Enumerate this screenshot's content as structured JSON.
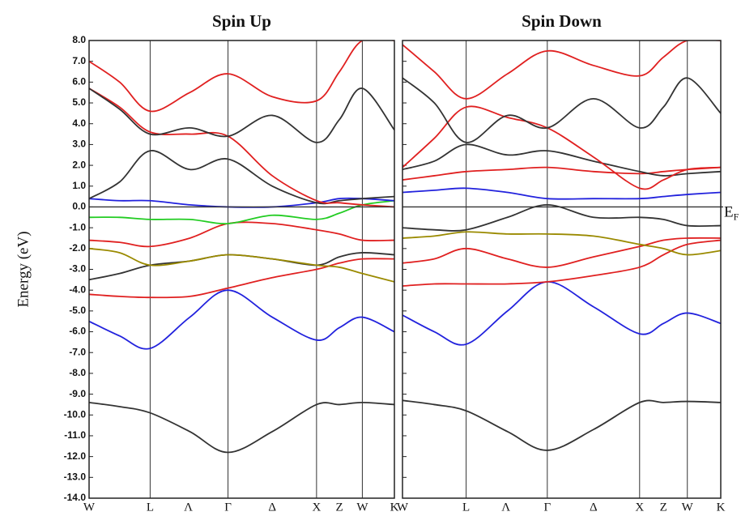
{
  "chart_data": [
    {
      "type": "line",
      "title": "Spin Up",
      "ylabel": "Energy (eV)",
      "x": [
        0,
        0.1,
        0.2,
        0.33,
        0.455,
        0.6,
        0.745,
        0.82,
        0.895,
        1.0
      ],
      "xlim": [
        0,
        1
      ],
      "xticks": [
        {
          "value": 0,
          "label": "W"
        },
        {
          "value": 0.2,
          "label": "L"
        },
        {
          "value": 0.325,
          "label": "Λ"
        },
        {
          "value": 0.455,
          "label": "Γ"
        },
        {
          "value": 0.6,
          "label": "Δ"
        },
        {
          "value": 0.745,
          "label": "X"
        },
        {
          "value": 0.82,
          "label": "Z"
        },
        {
          "value": 0.895,
          "label": "W"
        },
        {
          "value": 1.0,
          "label": "K"
        }
      ],
      "vlines": [
        0.2,
        0.455,
        0.745,
        0.895
      ],
      "fermi_level": 0,
      "ylim": [
        -14,
        8
      ],
      "yticks": [
        {
          "value": 8,
          "label": "8.0"
        },
        {
          "value": 7,
          "label": "7.0"
        },
        {
          "value": 6,
          "label": "6.0"
        },
        {
          "value": 5,
          "label": "5.0"
        },
        {
          "value": 4,
          "label": "4.0"
        },
        {
          "value": 3,
          "label": "3.0"
        },
        {
          "value": 2,
          "label": "2.0"
        },
        {
          "value": 1,
          "label": "1.0"
        },
        {
          "value": 0,
          "label": "0.0"
        },
        {
          "value": -1,
          "label": "-1.0"
        },
        {
          "value": -2,
          "label": "-2.0"
        },
        {
          "value": -3,
          "label": "-3.0"
        },
        {
          "value": -4,
          "label": "-4.0"
        },
        {
          "value": -5,
          "label": "-5.0"
        },
        {
          "value": -6,
          "label": "-6.0"
        },
        {
          "value": -7,
          "label": "-7.0"
        },
        {
          "value": -8,
          "label": "-8.0"
        },
        {
          "value": -9,
          "label": "-9.0"
        },
        {
          "value": -10,
          "label": "-10.0"
        },
        {
          "value": -11,
          "label": "-11.0"
        },
        {
          "value": -12,
          "label": "-12.0"
        },
        {
          "value": -13,
          "label": "-13.0"
        },
        {
          "value": -14,
          "label": "-14.0"
        }
      ],
      "series": [
        {
          "color": "#333333",
          "values": [
            -9.4,
            -9.6,
            -9.9,
            -10.8,
            -11.8,
            -10.8,
            -9.5,
            -9.5,
            -9.4,
            -9.5
          ]
        },
        {
          "color": "#2222dd",
          "values": [
            -5.5,
            -6.2,
            -6.8,
            -5.3,
            -4.0,
            -5.3,
            -6.4,
            -5.8,
            -5.3,
            -6.0
          ]
        },
        {
          "color": "#e02020",
          "values": [
            -4.2,
            -4.3,
            -4.35,
            -4.3,
            -3.9,
            -3.4,
            -3.0,
            -2.7,
            -2.5,
            -2.5
          ]
        },
        {
          "color": "#333333",
          "values": [
            -3.5,
            -3.2,
            -2.8,
            -2.6,
            -2.3,
            -2.5,
            -2.8,
            -2.4,
            -2.2,
            -2.3
          ]
        },
        {
          "color": "#9a8a00",
          "values": [
            -2.0,
            -2.2,
            -2.8,
            -2.6,
            -2.3,
            -2.5,
            -2.8,
            -2.9,
            -3.2,
            -3.6
          ]
        },
        {
          "color": "#e02020",
          "values": [
            -1.6,
            -1.7,
            -1.9,
            -1.5,
            -0.8,
            -0.8,
            -1.1,
            -1.3,
            -1.6,
            -1.6
          ]
        },
        {
          "color": "#22cc22",
          "values": [
            -0.5,
            -0.5,
            -0.6,
            -0.6,
            -0.8,
            -0.4,
            -0.6,
            -0.3,
            0.1,
            0.3
          ]
        },
        {
          "color": "#2222dd",
          "values": [
            0.4,
            0.3,
            0.3,
            0.1,
            0.0,
            0.0,
            0.2,
            0.4,
            0.4,
            0.3
          ]
        },
        {
          "color": "#333333",
          "values": [
            0.4,
            1.2,
            2.7,
            1.8,
            2.3,
            1.0,
            0.2,
            0.3,
            0.4,
            0.5
          ]
        },
        {
          "color": "#e02020",
          "values": [
            5.7,
            4.8,
            3.6,
            3.5,
            3.4,
            1.5,
            0.3,
            0.2,
            0.1,
            0.0
          ]
        },
        {
          "color": "#333333",
          "values": [
            5.7,
            4.7,
            3.5,
            3.8,
            3.4,
            4.4,
            3.1,
            4.2,
            5.7,
            3.7
          ]
        },
        {
          "color": "#e02020",
          "values": [
            7.0,
            6.0,
            4.6,
            5.5,
            6.4,
            5.3,
            5.1,
            6.5,
            8.0,
            8.0
          ]
        }
      ]
    },
    {
      "type": "line",
      "title": "Spin Down",
      "annotation": {
        "text": "E",
        "sub": "F"
      },
      "x": [
        0,
        0.1,
        0.2,
        0.33,
        0.455,
        0.6,
        0.745,
        0.82,
        0.895,
        1.0
      ],
      "xlim": [
        0,
        1
      ],
      "xticks": [
        {
          "value": 0,
          "label": "W"
        },
        {
          "value": 0.2,
          "label": "L"
        },
        {
          "value": 0.325,
          "label": "Λ"
        },
        {
          "value": 0.455,
          "label": "Γ"
        },
        {
          "value": 0.6,
          "label": "Δ"
        },
        {
          "value": 0.745,
          "label": "X"
        },
        {
          "value": 0.82,
          "label": "Z"
        },
        {
          "value": 0.895,
          "label": "W"
        },
        {
          "value": 1.0,
          "label": "K"
        }
      ],
      "vlines": [
        0.2,
        0.455,
        0.745,
        0.895
      ],
      "fermi_level": 0,
      "ylim": [
        -14,
        8
      ],
      "yticks": [
        8,
        7,
        6,
        5,
        4,
        3,
        2,
        1,
        0,
        -1,
        -2,
        -3,
        -4,
        -5,
        -6,
        -7,
        -8,
        -9,
        -10,
        -11,
        -12,
        -13,
        -14
      ],
      "series": [
        {
          "color": "#333333",
          "values": [
            -9.3,
            -9.5,
            -9.8,
            -10.8,
            -11.7,
            -10.7,
            -9.4,
            -9.4,
            -9.35,
            -9.4
          ]
        },
        {
          "color": "#2222dd",
          "values": [
            -5.2,
            -6.0,
            -6.6,
            -5.0,
            -3.6,
            -4.8,
            -6.1,
            -5.6,
            -5.1,
            -5.6
          ]
        },
        {
          "color": "#e02020",
          "values": [
            -3.8,
            -3.7,
            -3.7,
            -3.7,
            -3.6,
            -3.3,
            -2.9,
            -2.3,
            -1.8,
            -1.6
          ]
        },
        {
          "color": "#e02020",
          "values": [
            -2.7,
            -2.5,
            -2.0,
            -2.5,
            -2.9,
            -2.4,
            -1.9,
            -1.6,
            -1.5,
            -1.5
          ]
        },
        {
          "color": "#9a8a00",
          "values": [
            -1.5,
            -1.4,
            -1.2,
            -1.3,
            -1.3,
            -1.4,
            -1.8,
            -2.0,
            -2.3,
            -2.1
          ]
        },
        {
          "color": "#333333",
          "values": [
            -1.0,
            -1.1,
            -1.1,
            -0.5,
            0.1,
            -0.5,
            -0.5,
            -0.6,
            -0.9,
            -0.9
          ]
        },
        {
          "color": "#2222dd",
          "values": [
            0.7,
            0.8,
            0.9,
            0.7,
            0.4,
            0.4,
            0.4,
            0.5,
            0.6,
            0.7
          ]
        },
        {
          "color": "#e02020",
          "values": [
            1.3,
            1.5,
            1.7,
            1.8,
            1.9,
            1.7,
            1.6,
            1.7,
            1.8,
            1.9
          ]
        },
        {
          "color": "#333333",
          "values": [
            1.8,
            2.2,
            3.0,
            2.5,
            2.7,
            2.2,
            1.7,
            1.5,
            1.6,
            1.7
          ]
        },
        {
          "color": "#e02020",
          "values": [
            1.9,
            3.3,
            4.8,
            4.3,
            3.8,
            2.4,
            0.9,
            1.3,
            1.8,
            1.9
          ]
        },
        {
          "color": "#333333",
          "values": [
            6.2,
            5.0,
            3.1,
            4.4,
            3.8,
            5.2,
            3.8,
            4.8,
            6.2,
            4.5
          ]
        },
        {
          "color": "#e02020",
          "values": [
            7.8,
            6.5,
            5.2,
            6.4,
            7.5,
            6.8,
            6.3,
            7.2,
            8.0,
            8.0
          ]
        }
      ]
    }
  ]
}
